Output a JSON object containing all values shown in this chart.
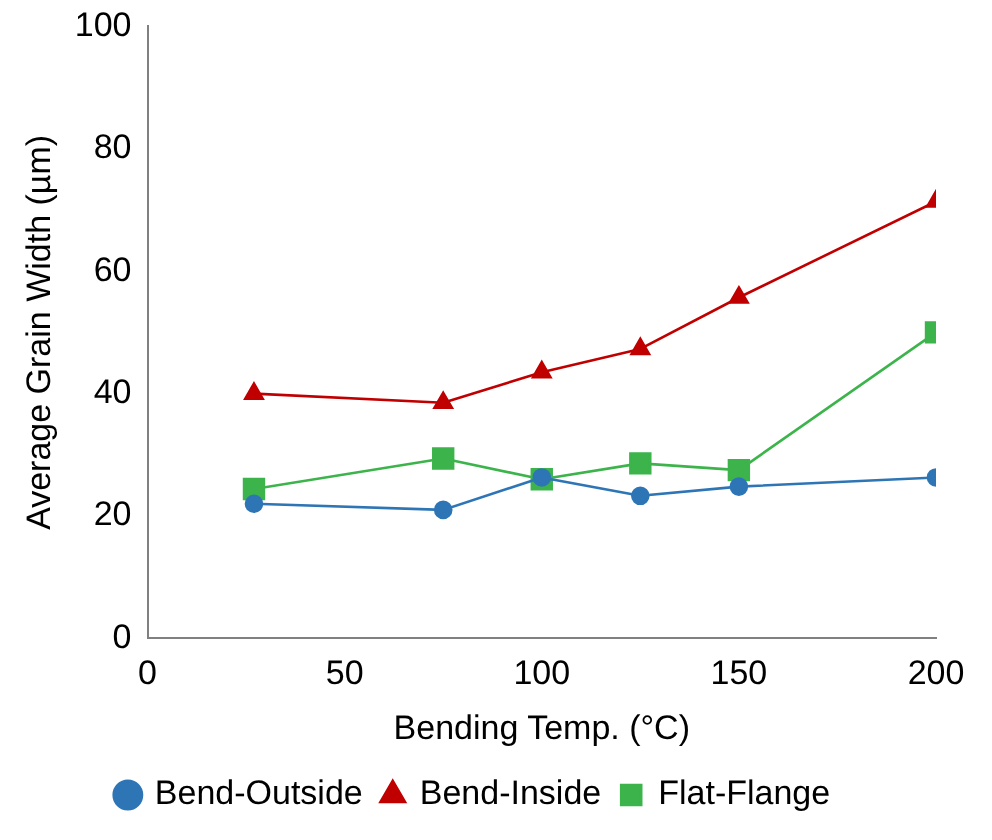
{
  "chart_data": {
    "type": "line",
    "xlabel": "Bending Temp. (°C)",
    "ylabel": "Average Grain Width (µm)",
    "x": [
      27,
      75,
      100,
      125,
      150,
      200
    ],
    "series": [
      {
        "name": "Bend-Outside",
        "color": "#2e75b6",
        "marker": "circle",
        "values": [
          22,
          21,
          26.3,
          23.3,
          24.8,
          26.3
        ]
      },
      {
        "name": "Bend-Inside",
        "color": "#c00000",
        "marker": "triangle",
        "values": [
          40,
          38.5,
          43.5,
          47.3,
          55.7,
          71.4
        ]
      },
      {
        "name": "Flat-Flange",
        "color": "#3cb44b",
        "marker": "square",
        "values": [
          24.4,
          29.4,
          26,
          28.6,
          27.5,
          50
        ]
      }
    ],
    "xlim": [
      0,
      200
    ],
    "xticks": [
      0,
      50,
      100,
      150,
      200
    ],
    "ylim": [
      0,
      100
    ],
    "yticks": [
      0,
      20,
      40,
      60,
      80,
      100
    ],
    "grid": false,
    "legend": "bottom",
    "line_style": "solid"
  }
}
